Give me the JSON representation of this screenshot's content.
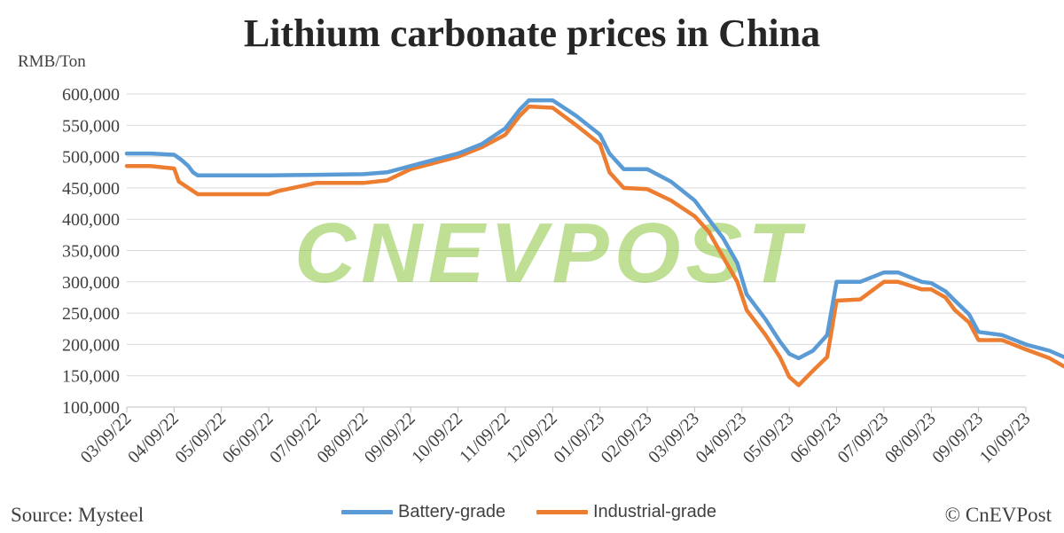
{
  "chart_data": {
    "type": "line",
    "title": "Lithium carbonate prices in China",
    "ylabel": "RMB/Ton",
    "xlabel": "",
    "ylim": [
      100000,
      600000
    ],
    "ytick_values": [
      100000,
      150000,
      200000,
      250000,
      300000,
      350000,
      400000,
      450000,
      500000,
      550000,
      600000
    ],
    "ytick_labels": [
      "100,000",
      "150,000",
      "200,000",
      "250,000",
      "300,000",
      "350,000",
      "400,000",
      "450,000",
      "500,000",
      "550,000",
      "600,000"
    ],
    "xtick_labels": [
      "03/09/22",
      "04/09/22",
      "05/09/22",
      "06/09/22",
      "07/09/22",
      "08/09/22",
      "09/09/22",
      "10/09/22",
      "11/09/22",
      "12/09/22",
      "01/09/23",
      "02/09/23",
      "03/09/23",
      "04/09/23",
      "05/09/23",
      "06/09/23",
      "07/09/23",
      "08/09/23",
      "09/09/23",
      "10/09/23"
    ],
    "grid": true,
    "legend_position": "bottom",
    "series": [
      {
        "name": "Battery-grade",
        "color": "#5B9BD5",
        "x": [
          0,
          0.5,
          1.0,
          1.15,
          1.3,
          1.4,
          1.5,
          2,
          3,
          4,
          5,
          5.5,
          6,
          6.5,
          7,
          7.5,
          8,
          8.3,
          8.5,
          9,
          9.5,
          10,
          10.2,
          10.5,
          11,
          11.5,
          12,
          12.3,
          12.6,
          12.9,
          13.1,
          13.5,
          13.8,
          14.0,
          14.2,
          14.5,
          14.8,
          15.0,
          15.5,
          16,
          16.3,
          16.8,
          17,
          17.3,
          17.5,
          17.8,
          18,
          18.5,
          19,
          19.5,
          19.8,
          20
        ],
        "y": [
          505000,
          505000,
          503000,
          495000,
          485000,
          475000,
          470000,
          470000,
          470000,
          471000,
          472000,
          475000,
          485000,
          495000,
          505000,
          520000,
          545000,
          575000,
          590000,
          590000,
          565000,
          535000,
          505000,
          480000,
          480000,
          460000,
          430000,
          400000,
          370000,
          330000,
          280000,
          240000,
          205000,
          185000,
          178000,
          190000,
          215000,
          300000,
          300000,
          315000,
          315000,
          300000,
          298000,
          285000,
          270000,
          248000,
          220000,
          215000,
          200000,
          190000,
          180000,
          178000
        ]
      },
      {
        "name": "Industrial-grade",
        "color": "#ED7D31",
        "x": [
          0,
          0.5,
          1.0,
          1.1,
          1.3,
          1.5,
          2,
          3,
          3.2,
          4,
          5,
          5.5,
          6,
          6.5,
          7,
          7.5,
          8,
          8.3,
          8.5,
          9,
          9.5,
          10,
          10.2,
          10.5,
          11,
          11.5,
          12,
          12.3,
          12.6,
          12.9,
          13.1,
          13.5,
          13.8,
          14.0,
          14.2,
          14.5,
          14.8,
          15.0,
          15.5,
          16,
          16.3,
          16.8,
          17,
          17.3,
          17.5,
          17.8,
          18,
          18.5,
          19,
          19.5,
          19.8,
          20
        ],
        "y": [
          485000,
          485000,
          481000,
          460000,
          450000,
          440000,
          440000,
          440000,
          445000,
          458000,
          458000,
          462000,
          480000,
          490000,
          500000,
          515000,
          535000,
          565000,
          580000,
          578000,
          550000,
          520000,
          475000,
          450000,
          448000,
          430000,
          405000,
          380000,
          340000,
          300000,
          255000,
          215000,
          180000,
          148000,
          135000,
          158000,
          180000,
          270000,
          272000,
          300000,
          300000,
          288000,
          288000,
          275000,
          255000,
          235000,
          207000,
          207000,
          192000,
          178000,
          165000,
          165000
        ]
      }
    ]
  },
  "watermark": "CNEVPOST",
  "watermark_color": "#8CC63F",
  "source": "Source: Mysteel",
  "copyright": "© CnEVPost"
}
